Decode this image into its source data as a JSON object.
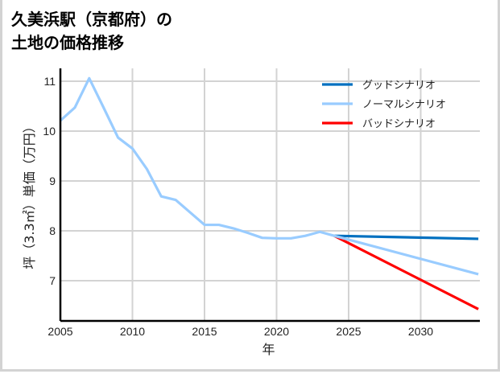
{
  "title_line1": "久美浜駅（京都府）の",
  "title_line2": "土地の価格推移",
  "chart_data": {
    "type": "line",
    "title": "久美浜駅（京都府）の土地の価格推移",
    "xlabel": "年",
    "ylabel": "坪（3.3㎡）単価（万円）",
    "xlim": [
      2005,
      2034
    ],
    "ylim": [
      6.2,
      11.3
    ],
    "x_ticks": [
      "2005",
      "2010",
      "2015",
      "2020",
      "2025",
      "2030"
    ],
    "y_ticks": [
      "7",
      "8",
      "9",
      "10",
      "11"
    ],
    "grid": true,
    "legend_position": "upper right",
    "series": [
      {
        "name": "グッドシナリオ",
        "color": "#0070c0",
        "x": [
          2024,
          2034
        ],
        "values": [
          7.9,
          7.84
        ]
      },
      {
        "name": "ノーマルシナリオ",
        "color": "#99ccff",
        "x": [
          2005,
          2006,
          2007,
          2008,
          2009,
          2010,
          2011,
          2012,
          2013,
          2014,
          2015,
          2016,
          2017,
          2018,
          2019,
          2020,
          2021,
          2022,
          2023,
          2024,
          2034
        ],
        "values": [
          10.21,
          10.47,
          11.06,
          10.47,
          9.87,
          9.65,
          9.24,
          8.69,
          8.62,
          8.37,
          8.12,
          8.12,
          8.05,
          7.96,
          7.86,
          7.85,
          7.85,
          7.9,
          7.98,
          7.9,
          7.13
        ]
      },
      {
        "name": "バッドシナリオ",
        "color": "#ff0000",
        "x": [
          2024,
          2034
        ],
        "values": [
          7.9,
          6.43
        ]
      }
    ]
  }
}
